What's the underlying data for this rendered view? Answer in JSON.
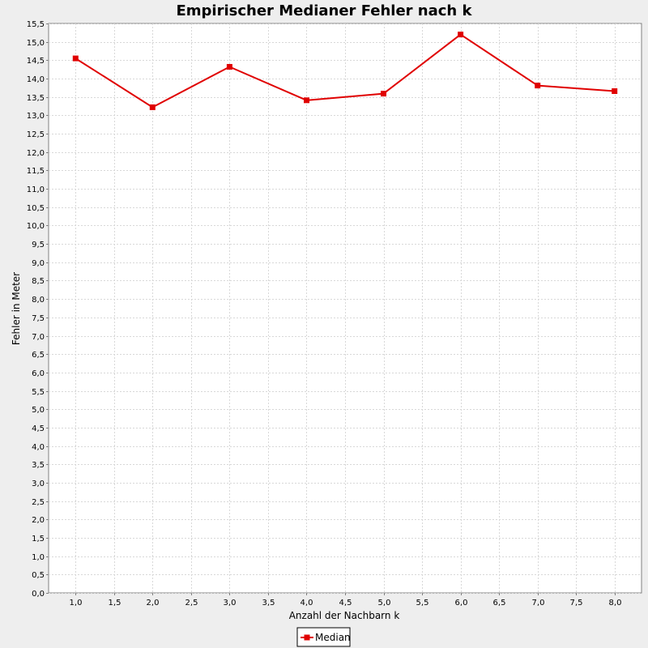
{
  "chart_data": {
    "type": "line",
    "title": "Empirischer Medianer Fehler nach k",
    "xlabel": "Anzahl der Nachbarn k",
    "ylabel": "Fehler in Meter",
    "xlim": [
      0.65,
      8.35
    ],
    "ylim": [
      0.0,
      15.5
    ],
    "x_ticks": [
      "1,0",
      "1,5",
      "2,0",
      "2,5",
      "3,0",
      "3,5",
      "4,0",
      "4,5",
      "5,0",
      "5,5",
      "6,0",
      "6,5",
      "7,0",
      "7,5",
      "8,0"
    ],
    "y_ticks": [
      "0,0",
      "0,5",
      "1,0",
      "1,5",
      "2,0",
      "2,5",
      "3,0",
      "3,5",
      "4,0",
      "4,5",
      "5,0",
      "5,5",
      "6,0",
      "6,5",
      "7,0",
      "7,5",
      "8,0",
      "8,5",
      "9,0",
      "9,5",
      "10,0",
      "10,5",
      "11,0",
      "11,5",
      "12,0",
      "12,5",
      "13,0",
      "13,5",
      "14,0",
      "14,5",
      "15,0",
      "15,5"
    ],
    "grid": true,
    "legend_position": "bottom-center",
    "series": [
      {
        "name": "Median",
        "color": "#e00000",
        "marker": "square",
        "x": [
          1,
          2,
          3,
          4,
          5,
          6,
          7,
          8
        ],
        "y": [
          14.55,
          13.22,
          14.32,
          13.41,
          13.59,
          15.2,
          13.81,
          13.66
        ]
      }
    ]
  }
}
